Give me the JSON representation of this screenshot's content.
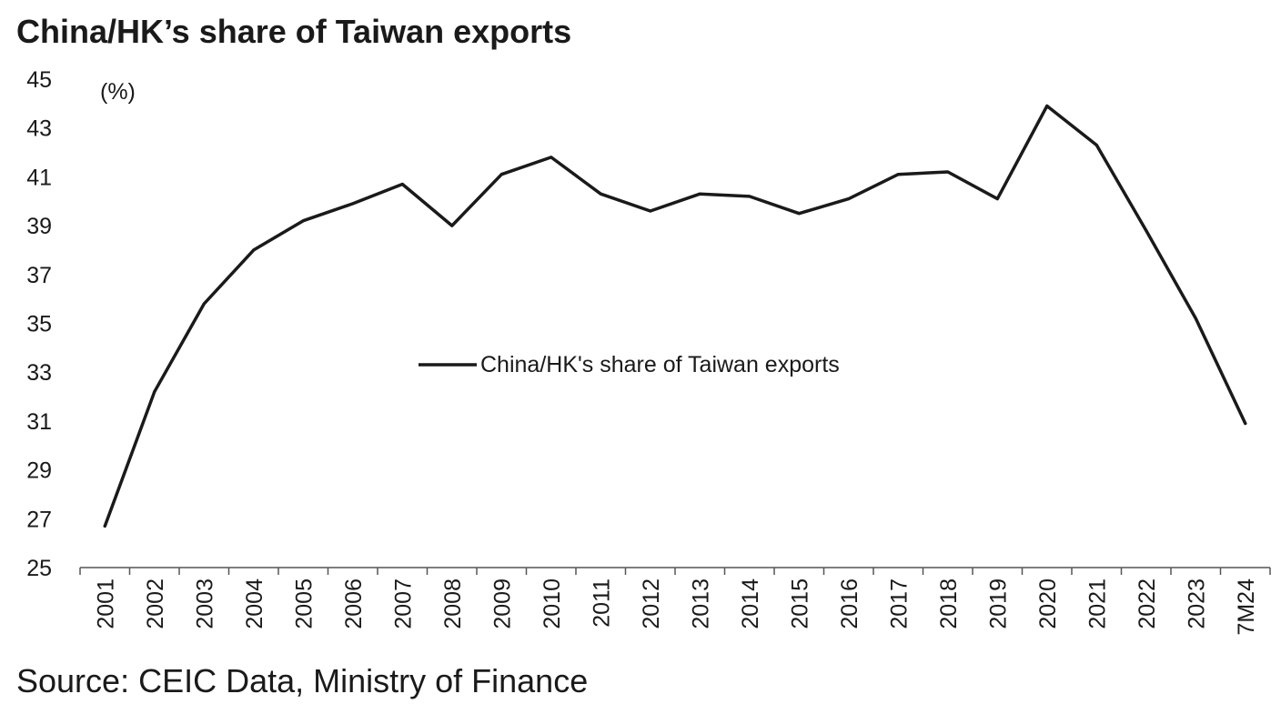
{
  "title": "China/HK’s share of Taiwan exports",
  "source": "Source: CEIC Data, Ministry of Finance",
  "chart_data": {
    "type": "line",
    "title": "China/HK’s share of Taiwan exports",
    "ylabel": "(%)",
    "xlabel": "",
    "ylim": [
      25,
      45
    ],
    "yticks": [
      25,
      27,
      29,
      31,
      33,
      35,
      37,
      39,
      41,
      43,
      45
    ],
    "categories": [
      "2001",
      "2002",
      "2003",
      "2004",
      "2005",
      "2006",
      "2007",
      "2008",
      "2009",
      "2010",
      "2011",
      "2012",
      "2013",
      "2014",
      "2015",
      "2016",
      "2017",
      "2018",
      "2019",
      "2020",
      "2021",
      "2022",
      "2023",
      "7M24"
    ],
    "series": [
      {
        "name": "China/HK's share of Taiwan exports",
        "color": "#1a1a1a",
        "values": [
          26.7,
          32.2,
          35.8,
          38.0,
          39.2,
          39.9,
          40.7,
          39.0,
          41.1,
          41.8,
          40.3,
          39.6,
          40.3,
          40.2,
          39.5,
          40.1,
          41.1,
          41.2,
          40.1,
          43.9,
          42.3,
          38.8,
          35.2,
          30.9
        ]
      }
    ],
    "legend_position": "center",
    "grid": false
  }
}
